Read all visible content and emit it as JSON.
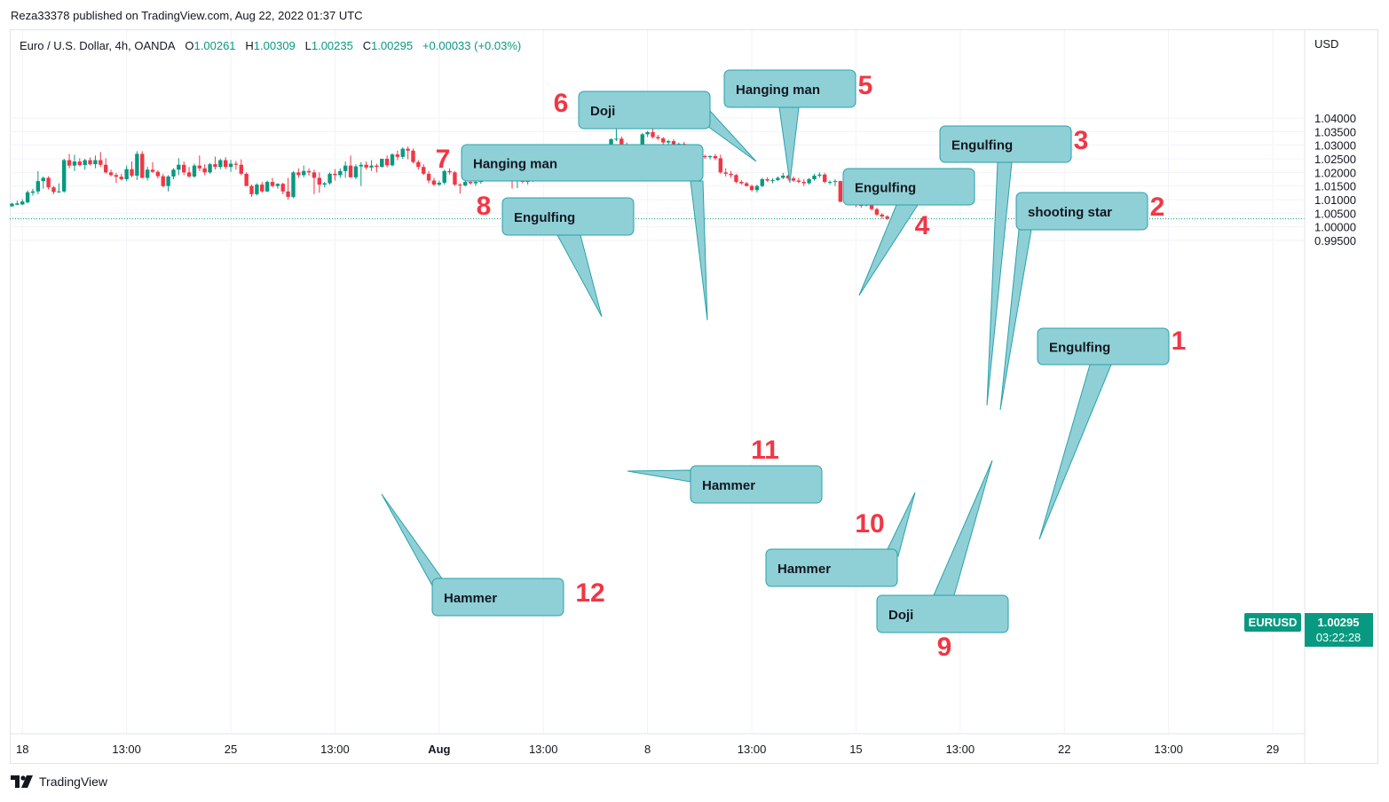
{
  "publisher_line": "Reza33378 published on TradingView.com, Aug 22, 2022 01:37 UTC",
  "legend": {
    "symbol": "Euro / U.S. Dollar, 4h, OANDA",
    "o_label": "O",
    "o_value": "1.00261",
    "h_label": "H",
    "h_value": "1.00309",
    "l_label": "L",
    "l_value": "1.00235",
    "c_label": "C",
    "c_value": "1.00295",
    "change": "+0.00033 (+0.03%)"
  },
  "currency": "USD",
  "brand": "TradingView",
  "price_badge": {
    "symbol": "EURUSD",
    "price": "1.00295",
    "countdown": "03:22:28"
  },
  "colors": {
    "up": "#089981",
    "down": "#f23645",
    "callout_fill": "#8fd0d6",
    "callout_stroke": "#2aa1ab",
    "annotation_number": "#f23645"
  },
  "chart_data": {
    "type": "candlestick",
    "ylim": [
      0.995,
      1.0435
    ],
    "y_ticks": [
      "1.04000",
      "1.03500",
      "1.03000",
      "1.02500",
      "1.02000",
      "1.01500",
      "1.01000",
      "1.00500",
      "1.00000",
      "0.99500"
    ],
    "y_tick_values": [
      1.04,
      1.035,
      1.03,
      1.025,
      1.02,
      1.015,
      1.01,
      1.005,
      1.0,
      0.995
    ],
    "x_ticks": [
      {
        "label": "18",
        "bar": 2,
        "bold": false
      },
      {
        "label": "13:00",
        "bar": 22,
        "bold": false
      },
      {
        "label": "25",
        "bar": 42,
        "bold": false
      },
      {
        "label": "13:00",
        "bar": 62,
        "bold": false
      },
      {
        "label": "Aug",
        "bar": 82,
        "bold": true
      },
      {
        "label": "13:00",
        "bar": 102,
        "bold": false
      },
      {
        "label": "8",
        "bar": 122,
        "bold": false
      },
      {
        "label": "13:00",
        "bar": 142,
        "bold": false
      },
      {
        "label": "15",
        "bar": 162,
        "bold": false
      },
      {
        "label": "13:00",
        "bar": 182,
        "bold": false
      },
      {
        "label": "22",
        "bar": 202,
        "bold": false
      },
      {
        "label": "13:00",
        "bar": 222,
        "bold": false
      },
      {
        "label": "29",
        "bar": 242,
        "bold": false
      }
    ],
    "last_price": 1.00295,
    "candles": [
      [
        1.0075,
        1.0088,
        1.0075,
        1.0085
      ],
      [
        1.0081,
        1.0096,
        1.008,
        1.0086
      ],
      [
        1.0082,
        1.0101,
        1.008,
        1.0093
      ],
      [
        1.009,
        1.0134,
        1.0086,
        1.0127
      ],
      [
        1.0125,
        1.014,
        1.0115,
        1.013
      ],
      [
        1.013,
        1.0205,
        1.012,
        1.0168
      ],
      [
        1.0168,
        1.0185,
        1.014,
        1.018
      ],
      [
        1.018,
        1.0186,
        1.0137,
        1.0145
      ],
      [
        1.0145,
        1.015,
        1.012,
        1.0128
      ],
      [
        1.0128,
        1.016,
        1.0125,
        1.013
      ],
      [
        1.013,
        1.025,
        1.0125,
        1.0245
      ],
      [
        1.0245,
        1.0268,
        1.0215,
        1.0225
      ],
      [
        1.0225,
        1.0265,
        1.0205,
        1.024
      ],
      [
        1.024,
        1.0252,
        1.0222,
        1.0227
      ],
      [
        1.0227,
        1.025,
        1.021,
        1.0245
      ],
      [
        1.0245,
        1.0255,
        1.0225,
        1.023
      ],
      [
        1.023,
        1.0262,
        1.0215,
        1.0245
      ],
      [
        1.0245,
        1.0275,
        1.022,
        1.0228
      ],
      [
        1.0228,
        1.0252,
        1.0195,
        1.02
      ],
      [
        1.02,
        1.021,
        1.0185,
        1.019
      ],
      [
        1.019,
        1.0198,
        1.0162,
        1.0184
      ],
      [
        1.0184,
        1.0195,
        1.017,
        1.0175
      ],
      [
        1.0175,
        1.0225,
        1.0168,
        1.0212
      ],
      [
        1.0212,
        1.024,
        1.0182,
        1.0188
      ],
      [
        1.0188,
        1.0278,
        1.0172,
        1.0268
      ],
      [
        1.0268,
        1.0278,
        1.0178,
        1.018
      ],
      [
        1.018,
        1.022,
        1.017,
        1.021
      ],
      [
        1.021,
        1.0238,
        1.0198,
        1.0202
      ],
      [
        1.0202,
        1.0208,
        1.0178,
        1.0186
      ],
      [
        1.0186,
        1.0195,
        1.0145,
        1.015
      ],
      [
        1.015,
        1.019,
        1.013,
        1.0185
      ],
      [
        1.0185,
        1.0215,
        1.0175,
        1.021
      ],
      [
        1.021,
        1.0252,
        1.019,
        1.0228
      ],
      [
        1.0228,
        1.024,
        1.019,
        1.02
      ],
      [
        1.02,
        1.022,
        1.018,
        1.0185
      ],
      [
        1.0185,
        1.0232,
        1.018,
        1.0225
      ],
      [
        1.0225,
        1.0262,
        1.0205,
        1.0215
      ],
      [
        1.0215,
        1.023,
        1.019,
        1.02
      ],
      [
        1.02,
        1.0235,
        1.0195,
        1.023
      ],
      [
        1.023,
        1.0258,
        1.021,
        1.022
      ],
      [
        1.022,
        1.025,
        1.0212,
        1.0245
      ],
      [
        1.0245,
        1.0256,
        1.0212,
        1.022
      ],
      [
        1.022,
        1.0246,
        1.0202,
        1.0232
      ],
      [
        1.0232,
        1.0242,
        1.021,
        1.0228
      ],
      [
        1.0228,
        1.0248,
        1.019,
        1.0195
      ],
      [
        1.0195,
        1.02,
        1.015,
        1.015
      ],
      [
        1.015,
        1.0155,
        1.011,
        1.012
      ],
      [
        1.012,
        1.016,
        1.0115,
        1.0155
      ],
      [
        1.0155,
        1.0165,
        1.0125,
        1.013
      ],
      [
        1.013,
        1.017,
        1.0128,
        1.0165
      ],
      [
        1.0165,
        1.018,
        1.0145,
        1.015
      ],
      [
        1.015,
        1.016,
        1.014,
        1.0158
      ],
      [
        1.0158,
        1.0162,
        1.012,
        1.013
      ],
      [
        1.013,
        1.018,
        1.01,
        1.011
      ],
      [
        1.011,
        1.0205,
        1.0105,
        1.02
      ],
      [
        1.02,
        1.0215,
        1.018,
        1.019
      ],
      [
        1.019,
        1.0225,
        1.0182,
        1.0205
      ],
      [
        1.0205,
        1.0215,
        1.0188,
        1.02
      ],
      [
        1.02,
        1.021,
        1.012,
        1.018
      ],
      [
        1.018,
        1.02,
        1.0125,
        1.0155
      ],
      [
        1.0155,
        1.0165,
        1.0145,
        1.016
      ],
      [
        1.016,
        1.02,
        1.0155,
        1.0195
      ],
      [
        1.0195,
        1.0212,
        1.017,
        1.019
      ],
      [
        1.019,
        1.0215,
        1.018,
        1.0205
      ],
      [
        1.0205,
        1.024,
        1.018,
        1.0225
      ],
      [
        1.0225,
        1.0262,
        1.018,
        1.0182
      ],
      [
        1.0182,
        1.023,
        1.0175,
        1.0222
      ],
      [
        1.0222,
        1.0238,
        1.015,
        1.0228
      ],
      [
        1.0228,
        1.024,
        1.021,
        1.0218
      ],
      [
        1.0218,
        1.0245,
        1.0205,
        1.0225
      ],
      [
        1.0225,
        1.0232,
        1.02,
        1.022
      ],
      [
        1.022,
        1.025,
        1.0218,
        1.025
      ],
      [
        1.025,
        1.0262,
        1.0218,
        1.0226
      ],
      [
        1.0226,
        1.027,
        1.0222,
        1.0266
      ],
      [
        1.0266,
        1.028,
        1.0245,
        1.0257
      ],
      [
        1.0257,
        1.0292,
        1.025,
        1.0287
      ],
      [
        1.0287,
        1.0295,
        1.0248,
        1.028
      ],
      [
        1.028,
        1.0288,
        1.0233,
        1.0238
      ],
      [
        1.0238,
        1.0245,
        1.021,
        1.022
      ],
      [
        1.022,
        1.023,
        1.019,
        1.0195
      ],
      [
        1.0195,
        1.0205,
        1.016,
        1.017
      ],
      [
        1.017,
        1.018,
        1.015,
        1.0155
      ],
      [
        1.0155,
        1.017,
        1.015,
        1.0162
      ],
      [
        1.0162,
        1.021,
        1.0155,
        1.0205
      ],
      [
        1.0205,
        1.0215,
        1.0192,
        1.02
      ],
      [
        1.02,
        1.0205,
        1.015,
        1.0155
      ],
      [
        1.0155,
        1.016,
        1.0122,
        1.0152
      ],
      [
        1.0152,
        1.017,
        1.0148,
        1.0165
      ],
      [
        1.0165,
        1.0175,
        1.0155,
        1.016
      ],
      [
        1.016,
        1.0172,
        1.015,
        1.0165
      ],
      [
        1.0165,
        1.02,
        1.0158,
        1.0195
      ],
      [
        1.0195,
        1.021,
        1.019,
        1.0197
      ],
      [
        1.0197,
        1.025,
        1.0195,
        1.0245
      ],
      [
        1.0245,
        1.0253,
        1.0225,
        1.0237
      ],
      [
        1.0237,
        1.0242,
        1.0228,
        1.0234
      ],
      [
        1.0234,
        1.024,
        1.0225,
        1.023
      ],
      [
        1.023,
        1.0245,
        1.014,
        1.017
      ],
      [
        1.017,
        1.0195,
        1.0142,
        1.019
      ],
      [
        1.019,
        1.02,
        1.016,
        1.0165
      ],
      [
        1.0165,
        1.0175,
        1.0155,
        1.017
      ],
      [
        1.017,
        1.019,
        1.0165,
        1.0185
      ],
      [
        1.0185,
        1.0195,
        1.017,
        1.018
      ],
      [
        1.018,
        1.0205,
        1.0175,
        1.0195
      ],
      [
        1.0195,
        1.02,
        1.0185,
        1.019
      ],
      [
        1.019,
        1.02,
        1.0185,
        1.0193
      ],
      [
        1.0193,
        1.0198,
        1.0185,
        1.0187
      ],
      [
        1.0187,
        1.0195,
        1.0182,
        1.019
      ],
      [
        1.019,
        1.025,
        1.0185,
        1.0238
      ],
      [
        1.0238,
        1.0248,
        1.022,
        1.0242
      ],
      [
        1.0242,
        1.0248,
        1.021,
        1.0215
      ],
      [
        1.0215,
        1.023,
        1.0205,
        1.0212
      ],
      [
        1.0212,
        1.022,
        1.0198,
        1.02
      ],
      [
        1.02,
        1.0212,
        1.0195,
        1.021
      ],
      [
        1.021,
        1.0225,
        1.02,
        1.022
      ],
      [
        1.022,
        1.026,
        1.02,
        1.0225
      ],
      [
        1.0225,
        1.0325,
        1.0222,
        1.0322
      ],
      [
        1.0322,
        1.0362,
        1.0315,
        1.0324
      ],
      [
        1.0324,
        1.0332,
        1.0288,
        1.0295
      ],
      [
        1.0295,
        1.031,
        1.0288,
        1.0292
      ],
      [
        1.0292,
        1.03,
        1.028,
        1.0288
      ],
      [
        1.0288,
        1.0296,
        1.0275,
        1.028
      ],
      [
        1.028,
        1.0345,
        1.0278,
        1.034
      ],
      [
        1.034,
        1.0352,
        1.033,
        1.0348
      ],
      [
        1.0348,
        1.0365,
        1.0325,
        1.033
      ],
      [
        1.033,
        1.0338,
        1.0318,
        1.0325
      ],
      [
        1.0325,
        1.033,
        1.03,
        1.031
      ],
      [
        1.031,
        1.032,
        1.0298,
        1.0315
      ],
      [
        1.0315,
        1.0322,
        1.0295,
        1.03
      ],
      [
        1.03,
        1.031,
        1.029,
        1.0305
      ],
      [
        1.0305,
        1.0312,
        1.029,
        1.0292
      ],
      [
        1.0292,
        1.0298,
        1.0255,
        1.027
      ],
      [
        1.027,
        1.0278,
        1.024,
        1.0248
      ],
      [
        1.0248,
        1.0268,
        1.0242,
        1.026
      ],
      [
        1.026,
        1.0265,
        1.025,
        1.0256
      ],
      [
        1.0256,
        1.0262,
        1.0248,
        1.026
      ],
      [
        1.026,
        1.0268,
        1.0245,
        1.0252
      ],
      [
        1.0252,
        1.0265,
        1.0195,
        1.02
      ],
      [
        1.02,
        1.0215,
        1.0185,
        1.0195
      ],
      [
        1.0195,
        1.0205,
        1.018,
        1.019
      ],
      [
        1.019,
        1.0195,
        1.016,
        1.0165
      ],
      [
        1.0165,
        1.0172,
        1.0155,
        1.016
      ],
      [
        1.016,
        1.0165,
        1.0148,
        1.015
      ],
      [
        1.015,
        1.0155,
        1.013,
        1.0135
      ],
      [
        1.0135,
        1.0155,
        1.0126,
        1.015
      ],
      [
        1.015,
        1.018,
        1.0145,
        1.0175
      ],
      [
        1.0175,
        1.0182,
        1.0165,
        1.017
      ],
      [
        1.017,
        1.0178,
        1.016,
        1.0172
      ],
      [
        1.0172,
        1.0185,
        1.0168,
        1.018
      ],
      [
        1.018,
        1.0198,
        1.0175,
        1.0188
      ],
      [
        1.0188,
        1.0192,
        1.017,
        1.0178
      ],
      [
        1.0178,
        1.0185,
        1.0165,
        1.017
      ],
      [
        1.017,
        1.018,
        1.016,
        1.0165
      ],
      [
        1.0165,
        1.0175,
        1.015,
        1.016
      ],
      [
        1.016,
        1.018,
        1.0155,
        1.0175
      ],
      [
        1.0175,
        1.0195,
        1.017,
        1.0188
      ],
      [
        1.0188,
        1.02,
        1.018,
        1.0192
      ],
      [
        1.0192,
        1.0198,
        1.016,
        1.0165
      ],
      [
        1.0165,
        1.017,
        1.0155,
        1.0165
      ],
      [
        1.0165,
        1.0175,
        1.015,
        1.0168
      ],
      [
        1.0168,
        1.017,
        1.009,
        1.0092
      ],
      [
        1.0092,
        1.01,
        1.0085,
        1.009
      ],
      [
        1.009,
        1.0098,
        1.008,
        1.0085
      ],
      [
        1.0085,
        1.0092,
        1.0072,
        1.008
      ],
      [
        1.008,
        1.0088,
        1.007,
        1.0078
      ],
      [
        1.0078,
        1.0092,
        1.0075,
        1.009
      ],
      [
        1.009,
        1.0095,
        1.006,
        1.0065
      ],
      [
        1.0065,
        1.007,
        1.004,
        1.0045
      ],
      [
        1.0045,
        1.005,
        1.003,
        1.0038
      ],
      [
        1.0038,
        1.0042,
        1.0025,
        1.003
      ],
      [
        1.0026,
        1.0031,
        1.0024,
        1.00295
      ]
    ]
  },
  "annotations": [
    {
      "label": "Engulfing",
      "number": "1"
    },
    {
      "label": "shooting star",
      "number": "2"
    },
    {
      "label": "Engulfing",
      "number": "3"
    },
    {
      "label": "Engulfing",
      "number": "4"
    },
    {
      "label": "Hanging man",
      "number": "5"
    },
    {
      "label": "Doji",
      "number": "6"
    },
    {
      "label": "Hanging man",
      "number": "7"
    },
    {
      "label": "Engulfing",
      "number": "8"
    },
    {
      "label": "Doji",
      "number": "9"
    },
    {
      "label": "Hammer",
      "number": "10"
    },
    {
      "label": "Hammer",
      "number": "11"
    },
    {
      "label": "Hammer",
      "number": "12"
    }
  ]
}
